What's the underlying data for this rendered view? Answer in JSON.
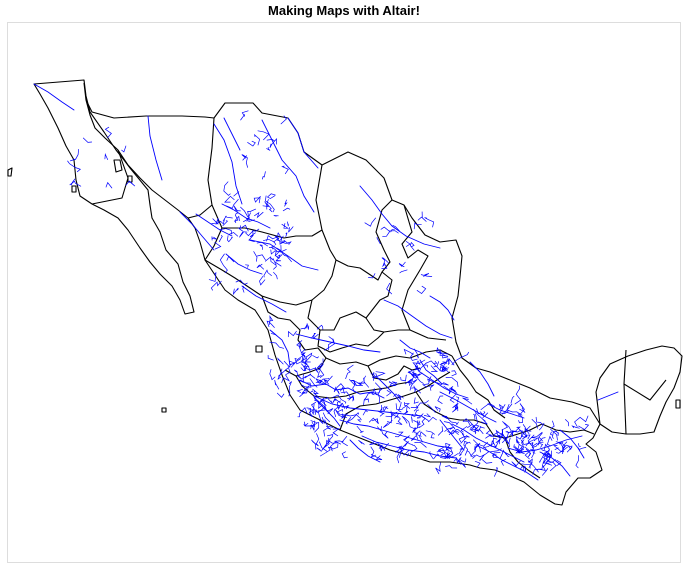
{
  "title": "Making Maps with Altair!",
  "colors": {
    "state_outline": "#000000",
    "rivers": "#0000ff",
    "frame": "#dddddd",
    "background": "#ffffff"
  }
}
